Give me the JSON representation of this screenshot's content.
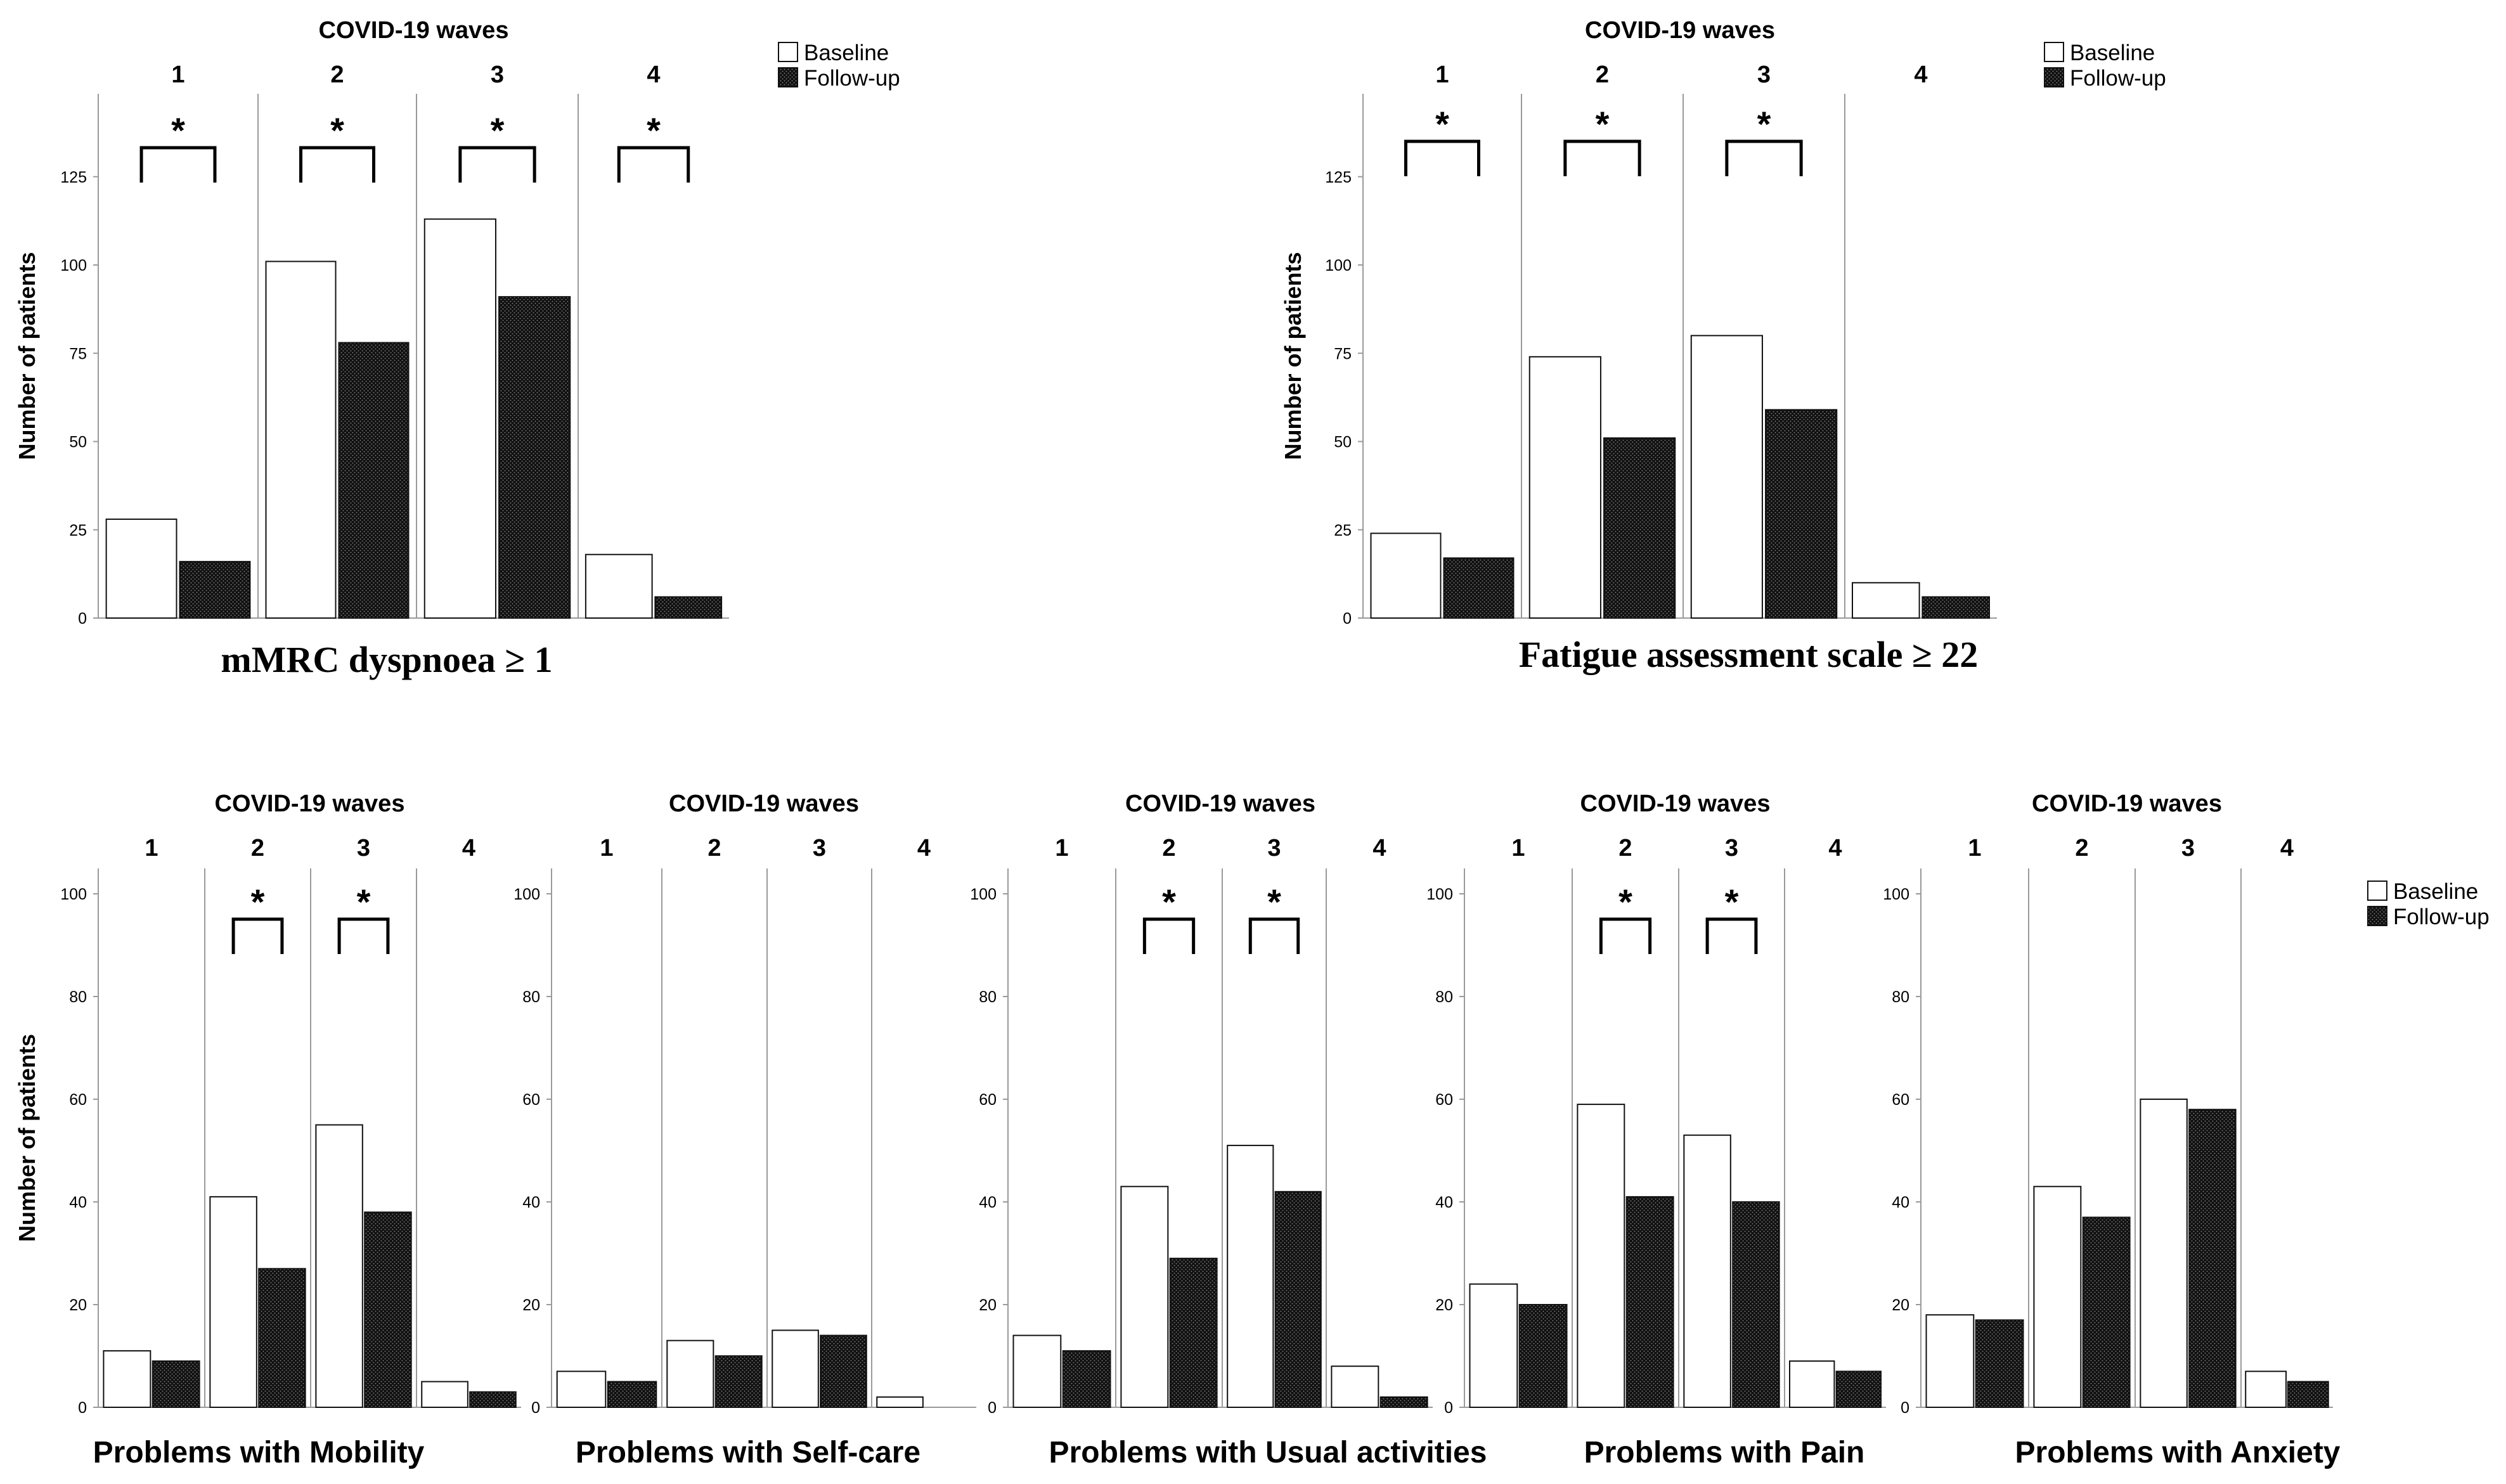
{
  "legend": {
    "baseline": "Baseline",
    "followup": "Follow-up"
  },
  "chart_data": [
    {
      "type": "bar",
      "id": "mmrc",
      "title": "mMRC dyspnoea ≥ 1",
      "facet_header": "COVID-19 waves",
      "categories": [
        "1",
        "2",
        "3",
        "4"
      ],
      "ylabel": "Number of patients",
      "ylim": [
        0,
        145
      ],
      "yticks": [
        0,
        25,
        50,
        75,
        100,
        125
      ],
      "series": [
        {
          "name": "Baseline",
          "values": [
            28,
            101,
            113,
            18
          ]
        },
        {
          "name": "Follow-up",
          "values": [
            16,
            78,
            91,
            6
          ]
        }
      ],
      "significance": [
        "*",
        "*",
        "*",
        "*"
      ],
      "legend_position": "top-right"
    },
    {
      "type": "bar",
      "id": "fatigue",
      "title": "Fatigue assessment scale ≥ 22",
      "facet_header": "COVID-19 waves",
      "categories": [
        "1",
        "2",
        "3",
        "4"
      ],
      "ylabel": "Number of patients",
      "ylim": [
        0,
        145
      ],
      "yticks": [
        0,
        25,
        50,
        75,
        100,
        125
      ],
      "series": [
        {
          "name": "Baseline",
          "values": [
            24,
            74,
            80,
            10
          ]
        },
        {
          "name": "Follow-up",
          "values": [
            17,
            51,
            59,
            6
          ]
        }
      ],
      "significance": [
        "*",
        "*",
        "*",
        ""
      ],
      "legend_position": "top-right"
    },
    {
      "type": "bar",
      "id": "mobility",
      "title": "Problems with Mobility",
      "facet_header": "COVID-19 waves",
      "categories": [
        "1",
        "2",
        "3",
        "4"
      ],
      "ylabel": "Number of patients",
      "ylim": [
        0,
        105
      ],
      "yticks": [
        0,
        20,
        40,
        60,
        80,
        100
      ],
      "series": [
        {
          "name": "Baseline",
          "values": [
            11,
            41,
            55,
            5
          ]
        },
        {
          "name": "Follow-up",
          "values": [
            9,
            27,
            38,
            3
          ]
        }
      ],
      "significance": [
        "",
        "*",
        "*",
        ""
      ]
    },
    {
      "type": "bar",
      "id": "selfcare",
      "title": "Problems with Self-care",
      "facet_header": "COVID-19 waves",
      "categories": [
        "1",
        "2",
        "3",
        "4"
      ],
      "ylabel": "",
      "ylim": [
        0,
        105
      ],
      "yticks": [
        0,
        20,
        40,
        60,
        80,
        100
      ],
      "series": [
        {
          "name": "Baseline",
          "values": [
            7,
            13,
            15,
            2
          ]
        },
        {
          "name": "Follow-up",
          "values": [
            5,
            10,
            14,
            0
          ]
        }
      ],
      "significance": [
        "",
        "",
        "",
        ""
      ]
    },
    {
      "type": "bar",
      "id": "usual",
      "title": "Problems with Usual activities",
      "facet_header": "COVID-19 waves",
      "categories": [
        "1",
        "2",
        "3",
        "4"
      ],
      "ylabel": "",
      "ylim": [
        0,
        105
      ],
      "yticks": [
        0,
        20,
        40,
        60,
        80,
        100
      ],
      "series": [
        {
          "name": "Baseline",
          "values": [
            14,
            43,
            51,
            8
          ]
        },
        {
          "name": "Follow-up",
          "values": [
            11,
            29,
            42,
            2
          ]
        }
      ],
      "significance": [
        "",
        "*",
        "*",
        ""
      ]
    },
    {
      "type": "bar",
      "id": "pain",
      "title": "Problems with Pain",
      "facet_header": "COVID-19 waves",
      "categories": [
        "1",
        "2",
        "3",
        "4"
      ],
      "ylabel": "",
      "ylim": [
        0,
        105
      ],
      "yticks": [
        0,
        20,
        40,
        60,
        80,
        100
      ],
      "series": [
        {
          "name": "Baseline",
          "values": [
            24,
            59,
            53,
            9
          ]
        },
        {
          "name": "Follow-up",
          "values": [
            20,
            41,
            40,
            7
          ]
        }
      ],
      "significance": [
        "",
        "*",
        "*",
        ""
      ]
    },
    {
      "type": "bar",
      "id": "anxiety",
      "title": "Problems with Anxiety",
      "facet_header": "COVID-19 waves",
      "categories": [
        "1",
        "2",
        "3",
        "4"
      ],
      "ylabel": "",
      "ylim": [
        0,
        105
      ],
      "yticks": [
        0,
        20,
        40,
        60,
        80,
        100
      ],
      "series": [
        {
          "name": "Baseline",
          "values": [
            18,
            43,
            60,
            7
          ]
        },
        {
          "name": "Follow-up",
          "values": [
            17,
            37,
            58,
            5
          ]
        }
      ],
      "significance": [
        "",
        "",
        "",
        ""
      ],
      "legend_position": "top-right"
    }
  ]
}
